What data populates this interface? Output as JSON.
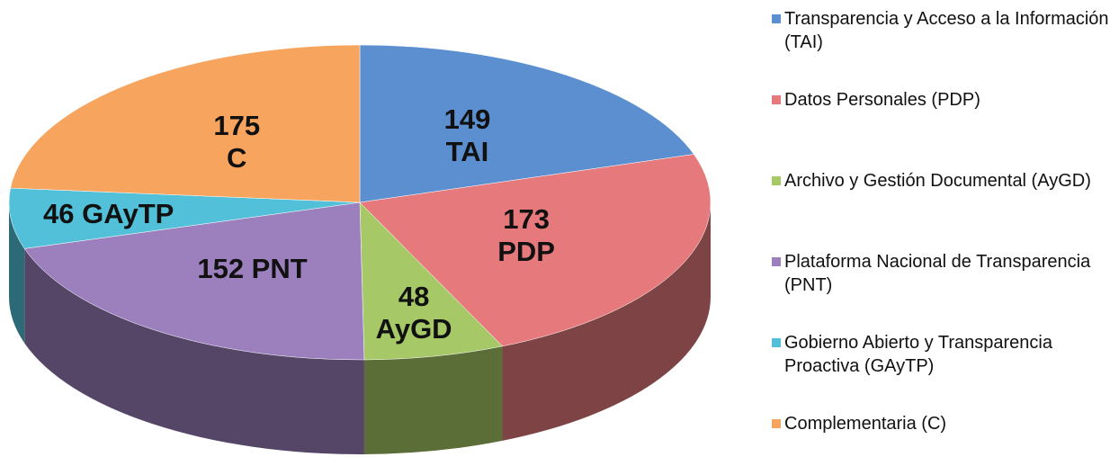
{
  "chart_data": {
    "type": "pie",
    "categories": [
      "Transparencia y Acceso a la Información (TAI)",
      "Datos Personales (PDP)",
      "Archivo y Gestión Documental (AyGD)",
      "Plataforma Nacional de Transparencia (PNT)",
      "Gobierno Abierto y Transparencia Proactiva (GAyTP)",
      "Complementaria (C)"
    ],
    "values": [
      149,
      173,
      48,
      152,
      46,
      175
    ],
    "value_labels": [
      "149\nTAI",
      "173\nPDP",
      "48\nAyGD",
      "152 PNT",
      "46 GAyTP",
      "175\nC"
    ],
    "colors": [
      "#5b8fd0",
      "#e5797b",
      "#a6c866",
      "#9b80bd",
      "#52c0d8",
      "#f7a45e"
    ]
  }
}
